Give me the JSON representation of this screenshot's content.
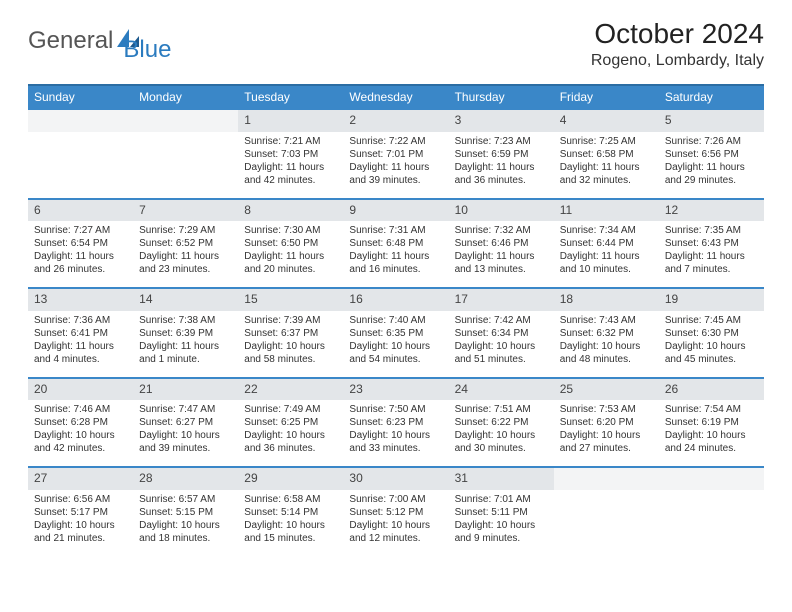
{
  "brand": {
    "left": "General",
    "right": "Blue"
  },
  "title": "October 2024",
  "location": "Rogeno, Lombardy, Italy",
  "colors": {
    "header_bg": "#3a87c8",
    "header_border": "#2b6da3",
    "daynum_bg": "#e3e6e9",
    "brand_blue": "#2b7bbf"
  },
  "day_names": [
    "Sunday",
    "Monday",
    "Tuesday",
    "Wednesday",
    "Thursday",
    "Friday",
    "Saturday"
  ],
  "weeks": [
    [
      {
        "n": "",
        "lines": [
          "",
          "",
          ""
        ]
      },
      {
        "n": "",
        "lines": [
          "",
          "",
          ""
        ]
      },
      {
        "n": "1",
        "lines": [
          "Sunrise: 7:21 AM",
          "Sunset: 7:03 PM",
          "Daylight: 11 hours and 42 minutes."
        ]
      },
      {
        "n": "2",
        "lines": [
          "Sunrise: 7:22 AM",
          "Sunset: 7:01 PM",
          "Daylight: 11 hours and 39 minutes."
        ]
      },
      {
        "n": "3",
        "lines": [
          "Sunrise: 7:23 AM",
          "Sunset: 6:59 PM",
          "Daylight: 11 hours and 36 minutes."
        ]
      },
      {
        "n": "4",
        "lines": [
          "Sunrise: 7:25 AM",
          "Sunset: 6:58 PM",
          "Daylight: 11 hours and 32 minutes."
        ]
      },
      {
        "n": "5",
        "lines": [
          "Sunrise: 7:26 AM",
          "Sunset: 6:56 PM",
          "Daylight: 11 hours and 29 minutes."
        ]
      }
    ],
    [
      {
        "n": "6",
        "lines": [
          "Sunrise: 7:27 AM",
          "Sunset: 6:54 PM",
          "Daylight: 11 hours and 26 minutes."
        ]
      },
      {
        "n": "7",
        "lines": [
          "Sunrise: 7:29 AM",
          "Sunset: 6:52 PM",
          "Daylight: 11 hours and 23 minutes."
        ]
      },
      {
        "n": "8",
        "lines": [
          "Sunrise: 7:30 AM",
          "Sunset: 6:50 PM",
          "Daylight: 11 hours and 20 minutes."
        ]
      },
      {
        "n": "9",
        "lines": [
          "Sunrise: 7:31 AM",
          "Sunset: 6:48 PM",
          "Daylight: 11 hours and 16 minutes."
        ]
      },
      {
        "n": "10",
        "lines": [
          "Sunrise: 7:32 AM",
          "Sunset: 6:46 PM",
          "Daylight: 11 hours and 13 minutes."
        ]
      },
      {
        "n": "11",
        "lines": [
          "Sunrise: 7:34 AM",
          "Sunset: 6:44 PM",
          "Daylight: 11 hours and 10 minutes."
        ]
      },
      {
        "n": "12",
        "lines": [
          "Sunrise: 7:35 AM",
          "Sunset: 6:43 PM",
          "Daylight: 11 hours and 7 minutes."
        ]
      }
    ],
    [
      {
        "n": "13",
        "lines": [
          "Sunrise: 7:36 AM",
          "Sunset: 6:41 PM",
          "Daylight: 11 hours and 4 minutes."
        ]
      },
      {
        "n": "14",
        "lines": [
          "Sunrise: 7:38 AM",
          "Sunset: 6:39 PM",
          "Daylight: 11 hours and 1 minute."
        ]
      },
      {
        "n": "15",
        "lines": [
          "Sunrise: 7:39 AM",
          "Sunset: 6:37 PM",
          "Daylight: 10 hours and 58 minutes."
        ]
      },
      {
        "n": "16",
        "lines": [
          "Sunrise: 7:40 AM",
          "Sunset: 6:35 PM",
          "Daylight: 10 hours and 54 minutes."
        ]
      },
      {
        "n": "17",
        "lines": [
          "Sunrise: 7:42 AM",
          "Sunset: 6:34 PM",
          "Daylight: 10 hours and 51 minutes."
        ]
      },
      {
        "n": "18",
        "lines": [
          "Sunrise: 7:43 AM",
          "Sunset: 6:32 PM",
          "Daylight: 10 hours and 48 minutes."
        ]
      },
      {
        "n": "19",
        "lines": [
          "Sunrise: 7:45 AM",
          "Sunset: 6:30 PM",
          "Daylight: 10 hours and 45 minutes."
        ]
      }
    ],
    [
      {
        "n": "20",
        "lines": [
          "Sunrise: 7:46 AM",
          "Sunset: 6:28 PM",
          "Daylight: 10 hours and 42 minutes."
        ]
      },
      {
        "n": "21",
        "lines": [
          "Sunrise: 7:47 AM",
          "Sunset: 6:27 PM",
          "Daylight: 10 hours and 39 minutes."
        ]
      },
      {
        "n": "22",
        "lines": [
          "Sunrise: 7:49 AM",
          "Sunset: 6:25 PM",
          "Daylight: 10 hours and 36 minutes."
        ]
      },
      {
        "n": "23",
        "lines": [
          "Sunrise: 7:50 AM",
          "Sunset: 6:23 PM",
          "Daylight: 10 hours and 33 minutes."
        ]
      },
      {
        "n": "24",
        "lines": [
          "Sunrise: 7:51 AM",
          "Sunset: 6:22 PM",
          "Daylight: 10 hours and 30 minutes."
        ]
      },
      {
        "n": "25",
        "lines": [
          "Sunrise: 7:53 AM",
          "Sunset: 6:20 PM",
          "Daylight: 10 hours and 27 minutes."
        ]
      },
      {
        "n": "26",
        "lines": [
          "Sunrise: 7:54 AM",
          "Sunset: 6:19 PM",
          "Daylight: 10 hours and 24 minutes."
        ]
      }
    ],
    [
      {
        "n": "27",
        "lines": [
          "Sunrise: 6:56 AM",
          "Sunset: 5:17 PM",
          "Daylight: 10 hours and 21 minutes."
        ]
      },
      {
        "n": "28",
        "lines": [
          "Sunrise: 6:57 AM",
          "Sunset: 5:15 PM",
          "Daylight: 10 hours and 18 minutes."
        ]
      },
      {
        "n": "29",
        "lines": [
          "Sunrise: 6:58 AM",
          "Sunset: 5:14 PM",
          "Daylight: 10 hours and 15 minutes."
        ]
      },
      {
        "n": "30",
        "lines": [
          "Sunrise: 7:00 AM",
          "Sunset: 5:12 PM",
          "Daylight: 10 hours and 12 minutes."
        ]
      },
      {
        "n": "31",
        "lines": [
          "Sunrise: 7:01 AM",
          "Sunset: 5:11 PM",
          "Daylight: 10 hours and 9 minutes."
        ]
      },
      {
        "n": "",
        "lines": [
          "",
          "",
          ""
        ]
      },
      {
        "n": "",
        "lines": [
          "",
          "",
          ""
        ]
      }
    ]
  ]
}
